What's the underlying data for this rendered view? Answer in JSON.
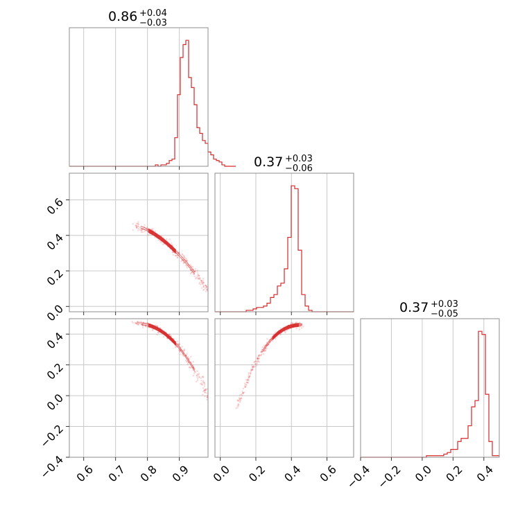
{
  "chart_data": {
    "type": "corner",
    "color": "#d62728",
    "grid": true,
    "parameters": [
      {
        "index": 0,
        "title": {
          "median": "0.86",
          "plus": "+0.04",
          "minus": "−0.03"
        },
        "range": [
          0.555,
          0.99
        ],
        "ticks": [
          {
            "v": 0.6,
            "label": "0.6"
          },
          {
            "v": 0.7,
            "label": "0.7"
          },
          {
            "v": 0.8,
            "label": "0.8"
          },
          {
            "v": 0.9,
            "label": "0.9"
          }
        ]
      },
      {
        "index": 1,
        "title": {
          "median": "0.37",
          "plus": "+0.03",
          "minus": "−0.06"
        },
        "range": [
          -0.03,
          0.75
        ],
        "ticks": [
          {
            "v": 0.0,
            "label": "0.0"
          },
          {
            "v": 0.2,
            "label": "0.2"
          },
          {
            "v": 0.4,
            "label": "0.4"
          },
          {
            "v": 0.6,
            "label": "0.6"
          }
        ]
      },
      {
        "index": 2,
        "title": {
          "median": "0.37",
          "plus": "+0.03",
          "minus": "−0.05"
        },
        "range": [
          -0.4,
          0.5
        ],
        "ticks": [
          {
            "v": -0.4,
            "label": "−0.4"
          },
          {
            "v": -0.2,
            "label": "−0.2"
          },
          {
            "v": 0.0,
            "label": "0.0"
          },
          {
            "v": 0.2,
            "label": "0.2"
          },
          {
            "v": 0.4,
            "label": "0.4"
          }
        ]
      }
    ],
    "histograms": [
      {
        "param": 0,
        "bin_start": 0.555,
        "bin_width": 0.0087,
        "counts": [
          0,
          0,
          0,
          0,
          0,
          0,
          0,
          0,
          0,
          0,
          0,
          0,
          0,
          0,
          0,
          0,
          0,
          0,
          0,
          0,
          0,
          0,
          0,
          0,
          0,
          0,
          0,
          0,
          0,
          0,
          0,
          1,
          0,
          1,
          1,
          2,
          4,
          5,
          20,
          50,
          76,
          85,
          88,
          62,
          55,
          43,
          27,
          23,
          18,
          16,
          10,
          8,
          5,
          4,
          3,
          1,
          0,
          0,
          0,
          0
        ]
      },
      {
        "param": 1,
        "bin_start": -0.03,
        "bin_width": 0.0195,
        "counts": [
          0,
          0,
          0,
          0,
          0,
          0,
          0,
          0,
          0,
          1,
          1,
          2,
          3,
          3,
          4,
          6,
          10,
          12,
          18,
          20,
          30,
          52,
          88,
          86,
          43,
          12,
          4,
          1,
          0,
          0,
          0,
          0,
          0,
          0,
          0,
          0,
          0,
          0,
          0,
          0
        ]
      },
      {
        "param": 2,
        "bin_start": -0.4,
        "bin_width": 0.0225,
        "counts": [
          0,
          0,
          0,
          0,
          0,
          0,
          0,
          0,
          0,
          0,
          0,
          0,
          0,
          0,
          0,
          0,
          0,
          0,
          0,
          1,
          1,
          1,
          1,
          1,
          2,
          3,
          5,
          5,
          10,
          12,
          12,
          20,
          32,
          36,
          80,
          78,
          40,
          10,
          1,
          1
        ]
      }
    ],
    "scatter_panels": [
      {
        "x_param": 0,
        "y_param": 1,
        "trend": "negative",
        "y_ticks": [
          {
            "v": 0.0,
            "label": "0.0"
          },
          {
            "v": 0.2,
            "label": "0.2"
          },
          {
            "v": 0.4,
            "label": "0.4"
          },
          {
            "v": 0.6,
            "label": "0.6"
          }
        ]
      },
      {
        "x_param": 0,
        "y_param": 2,
        "trend": "negative",
        "y_ticks": [
          {
            "v": -0.4,
            "label": "−0.4"
          },
          {
            "v": -0.2,
            "label": "−0.2"
          },
          {
            "v": 0.0,
            "label": "0.0"
          },
          {
            "v": 0.2,
            "label": "0.2"
          },
          {
            "v": 0.4,
            "label": "0.4"
          }
        ]
      },
      {
        "x_param": 1,
        "y_param": 2,
        "trend": "positive"
      }
    ]
  }
}
